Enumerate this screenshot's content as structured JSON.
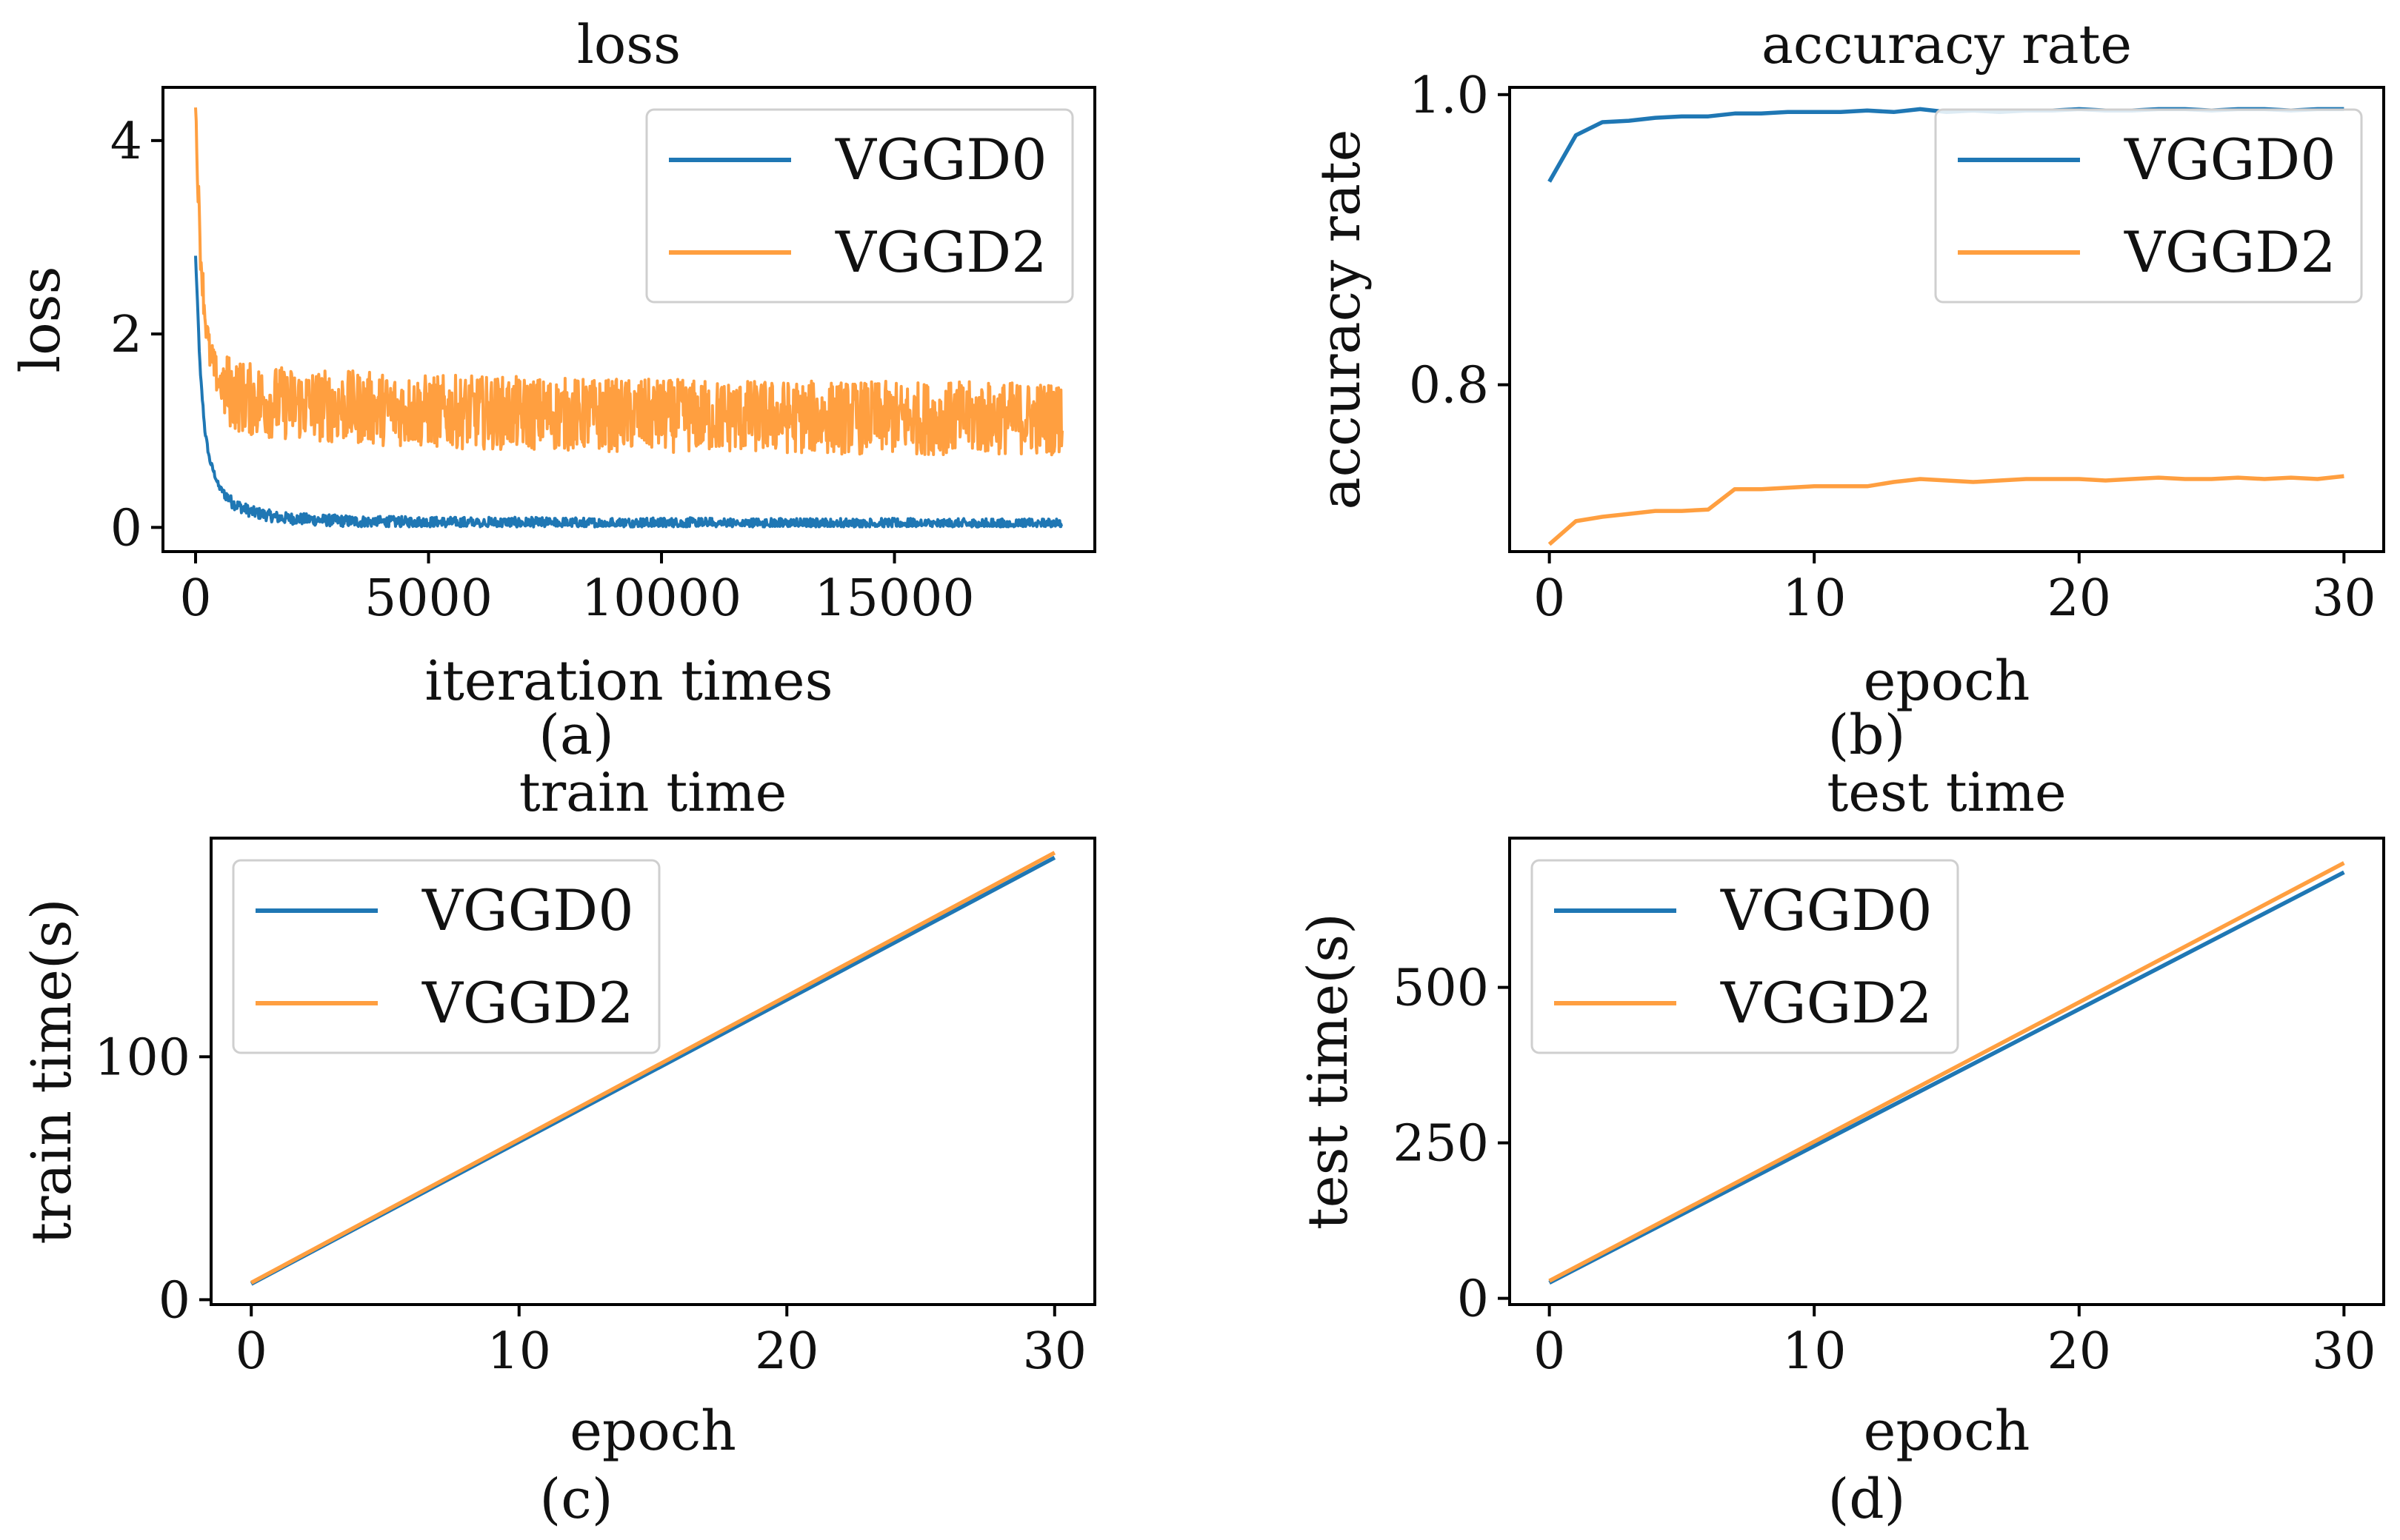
{
  "figure": {
    "subplot_labels": [
      "(a)",
      "(b)",
      "(c)",
      "(d)"
    ]
  },
  "colors": {
    "VGGD0": "#1f77b4",
    "VGGD2": "#ff9f40"
  },
  "chart_data": [
    {
      "id": "loss",
      "type": "line",
      "title": "loss",
      "xlabel": "iteration times",
      "ylabel": "loss",
      "xlim": [
        -700,
        19300
      ],
      "ylim": [
        -0.25,
        4.55
      ],
      "xticks": [
        0,
        5000,
        10000,
        15000
      ],
      "xtick_labels": [
        "0",
        "5000",
        "10000",
        "15000"
      ],
      "yticks": [
        0,
        2,
        4
      ],
      "ytick_labels": [
        "0",
        "2",
        "4"
      ],
      "legend": {
        "position": "top-right",
        "entries": [
          "VGGD0",
          "VGGD2"
        ]
      },
      "series": [
        {
          "name": "VGGD0",
          "x": [
            0,
            50,
            100,
            200,
            300,
            500,
            800,
            1200,
            1800,
            2500,
            3500,
            5000,
            7000,
            9000,
            11000,
            13000,
            15000,
            17000,
            18000,
            18600
          ],
          "values": [
            2.8,
            2.2,
            1.6,
            1.0,
            0.7,
            0.42,
            0.25,
            0.16,
            0.1,
            0.08,
            0.06,
            0.05,
            0.045,
            0.04,
            0.04,
            0.035,
            0.035,
            0.03,
            0.03,
            0.03
          ],
          "noise_band": 0.06
        },
        {
          "name": "VGGD2",
          "x": [
            0,
            50,
            100,
            200,
            300,
            500,
            800,
            1200,
            2000,
            3000,
            5000,
            7000,
            9000,
            11000,
            13000,
            15000,
            17000,
            18600
          ],
          "values": [
            4.3,
            3.6,
            2.9,
            2.2,
            1.8,
            1.5,
            1.38,
            1.32,
            1.28,
            1.25,
            1.2,
            1.18,
            1.16,
            1.15,
            1.14,
            1.13,
            1.13,
            1.13
          ],
          "noise_band": 0.38
        }
      ]
    },
    {
      "id": "accuracy",
      "type": "line",
      "title": "accuracy rate",
      "xlabel": "epoch",
      "ylabel": "accuracy rate",
      "xlim": [
        -1.5,
        31.5
      ],
      "ylim": [
        0.685,
        1.005
      ],
      "xticks": [
        0,
        10,
        20,
        30
      ],
      "xtick_labels": [
        "0",
        "10",
        "20",
        "30"
      ],
      "yticks": [
        0.8,
        1.0
      ],
      "ytick_labels": [
        "0.8",
        "1.0"
      ],
      "legend": {
        "position": "top-right",
        "entries": [
          "VGGD0",
          "VGGD2"
        ]
      },
      "series": [
        {
          "name": "VGGD0",
          "x": [
            0,
            1,
            2,
            3,
            4,
            5,
            6,
            7,
            8,
            9,
            10,
            11,
            12,
            13,
            14,
            15,
            16,
            17,
            18,
            19,
            20,
            21,
            22,
            23,
            24,
            25,
            26,
            27,
            28,
            29,
            30
          ],
          "values": [
            0.94,
            0.972,
            0.981,
            0.982,
            0.984,
            0.985,
            0.985,
            0.987,
            0.987,
            0.988,
            0.988,
            0.988,
            0.989,
            0.988,
            0.99,
            0.988,
            0.989,
            0.988,
            0.989,
            0.989,
            0.99,
            0.989,
            0.989,
            0.99,
            0.99,
            0.989,
            0.99,
            0.99,
            0.989,
            0.99,
            0.99
          ]
        },
        {
          "name": "VGGD2",
          "x": [
            0,
            1,
            2,
            3,
            4,
            5,
            6,
            7,
            8,
            9,
            10,
            11,
            12,
            13,
            14,
            15,
            16,
            17,
            18,
            19,
            20,
            21,
            22,
            23,
            24,
            25,
            26,
            27,
            28,
            29,
            30
          ],
          "values": [
            0.69,
            0.706,
            0.709,
            0.711,
            0.713,
            0.713,
            0.714,
            0.728,
            0.728,
            0.729,
            0.73,
            0.73,
            0.73,
            0.733,
            0.735,
            0.734,
            0.733,
            0.734,
            0.735,
            0.735,
            0.735,
            0.734,
            0.735,
            0.736,
            0.735,
            0.735,
            0.736,
            0.735,
            0.736,
            0.735,
            0.737
          ]
        }
      ]
    },
    {
      "id": "train_time",
      "type": "line",
      "title": "train time",
      "xlabel": "epoch",
      "ylabel": "train time(s)",
      "xlim": [
        -1.5,
        31.5
      ],
      "ylim": [
        -2,
        190
      ],
      "xticks": [
        0,
        10,
        20,
        30
      ],
      "xtick_labels": [
        "0",
        "10",
        "20",
        "30"
      ],
      "yticks": [
        0,
        100
      ],
      "ytick_labels": [
        "0",
        "100"
      ],
      "legend": {
        "position": "top-left",
        "entries": [
          "VGGD0",
          "VGGD2"
        ]
      },
      "series": [
        {
          "name": "VGGD0",
          "x": [
            0,
            30
          ],
          "values": [
            6.5,
            182
          ]
        },
        {
          "name": "VGGD2",
          "x": [
            0,
            30
          ],
          "values": [
            7.0,
            184
          ]
        }
      ]
    },
    {
      "id": "test_time",
      "type": "line",
      "title": "test time",
      "xlabel": "epoch",
      "ylabel": "test time(s)",
      "xlim": [
        -1.5,
        31.5
      ],
      "ylim": [
        -10,
        740
      ],
      "xticks": [
        0,
        10,
        20,
        30
      ],
      "xtick_labels": [
        "0",
        "10",
        "20",
        "30"
      ],
      "yticks": [
        0,
        250,
        500
      ],
      "ytick_labels": [
        "0",
        "250",
        "500"
      ],
      "legend": {
        "position": "top-left",
        "entries": [
          "VGGD0",
          "VGGD2"
        ]
      },
      "series": [
        {
          "name": "VGGD0",
          "x": [
            0,
            30
          ],
          "values": [
            25,
            685
          ]
        },
        {
          "name": "VGGD2",
          "x": [
            0,
            30
          ],
          "values": [
            28,
            700
          ]
        }
      ]
    }
  ]
}
